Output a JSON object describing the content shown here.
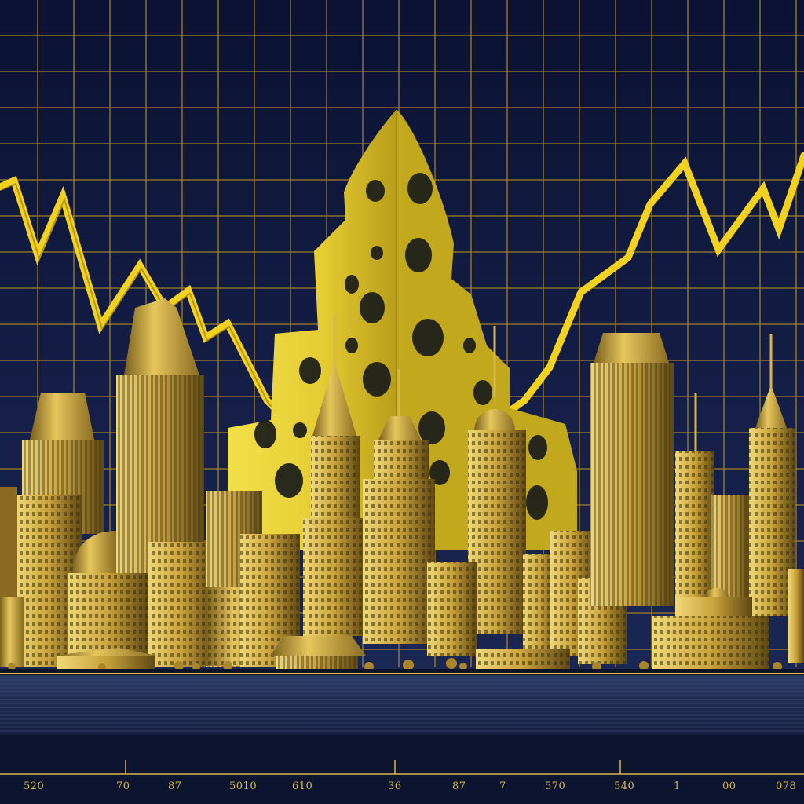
{
  "colors": {
    "sky_top": "#0b1233",
    "sky_bottom": "#1a2552",
    "grid": "#b08d26",
    "trend_line": "#f2d21e",
    "cheese": "#e9d43a",
    "cheese_shadow": "#b9a21a",
    "gold_light": "#e8c95a",
    "gold_dark": "#6b5418",
    "water": "#1c2a4a",
    "ground": "#0e1428"
  },
  "icons": [
    "cheese-wedge",
    "trend-line",
    "skyline",
    "gridlines"
  ],
  "axis": {
    "tick_labels": [
      "520",
      "70",
      "87",
      "5010",
      "610",
      "36",
      "87",
      "7",
      "570",
      "540",
      "1",
      "00",
      "078"
    ]
  }
}
